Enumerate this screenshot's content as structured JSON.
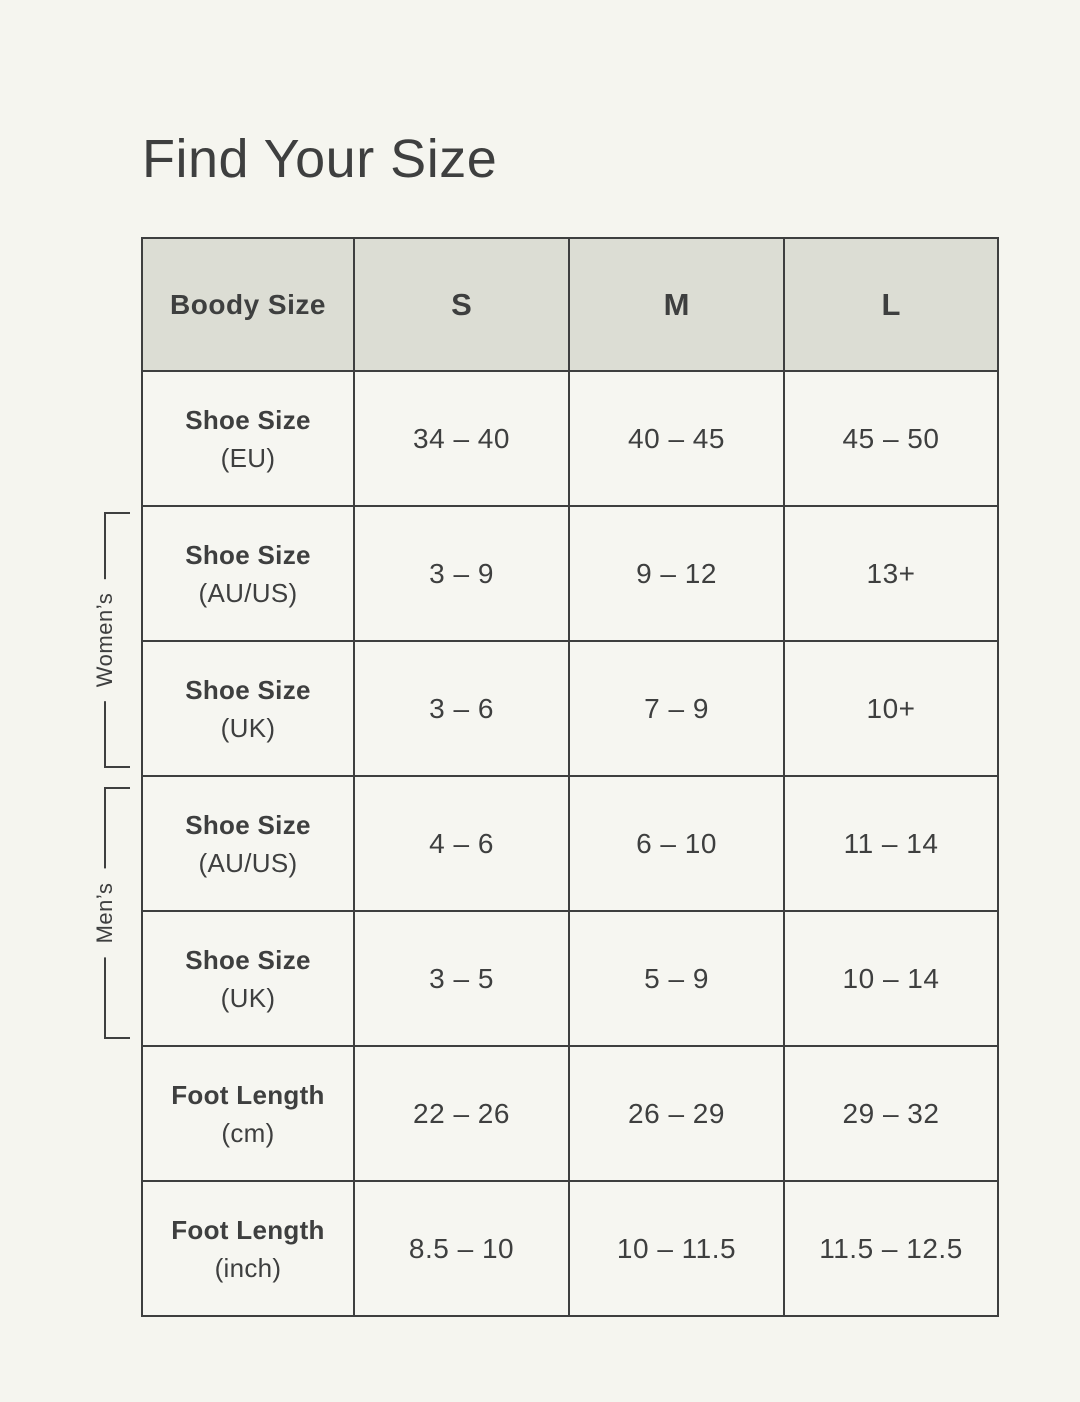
{
  "page": {
    "title": "Find Your Size"
  },
  "colors": {
    "page_background": "#F5F5EF",
    "header_background": "#DCDDD4",
    "cell_background": "#F6F6F1",
    "border": "#3E3F3F",
    "text": "#3E3F3F"
  },
  "table": {
    "columns": [
      "Boody Size",
      "S",
      "M",
      "L"
    ],
    "rows": [
      {
        "label": "Shoe Size",
        "sublabel": "(EU)",
        "values": [
          "34 – 40",
          "40 – 45",
          "45 – 50"
        ]
      },
      {
        "label": "Shoe Size",
        "sublabel": "(AU/US)",
        "values": [
          "3 – 9",
          "9 – 12",
          "13+"
        ]
      },
      {
        "label": "Shoe Size",
        "sublabel": "(UK)",
        "values": [
          "3 – 6",
          "7 – 9",
          "10+"
        ]
      },
      {
        "label": "Shoe Size",
        "sublabel": "(AU/US)",
        "values": [
          "4 – 6",
          "6 – 10",
          "11 – 14"
        ]
      },
      {
        "label": "Shoe Size",
        "sublabel": "(UK)",
        "values": [
          "3 – 5",
          "5 – 9",
          "10 – 14"
        ]
      },
      {
        "label": "Foot Length",
        "sublabel": "(cm)",
        "values": [
          "22 – 26",
          "26 – 29",
          "29 – 32"
        ]
      },
      {
        "label": "Foot Length",
        "sublabel": "(inch)",
        "values": [
          "8.5 – 10",
          "10 – 11.5",
          "11.5 – 12.5"
        ]
      }
    ]
  },
  "brackets": {
    "women": {
      "label": "Women’s"
    },
    "men": {
      "label": "Men’s"
    }
  }
}
